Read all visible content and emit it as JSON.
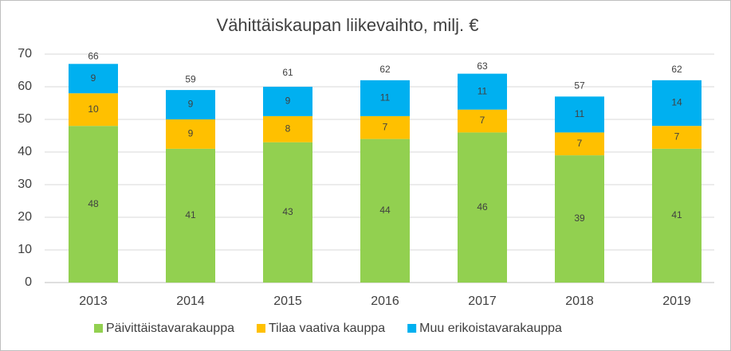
{
  "chart_data": {
    "type": "stacked_bar",
    "title": "Vähittäiskaupan liikevaihto, milj. €",
    "categories": [
      "2013",
      "2014",
      "2015",
      "2016",
      "2017",
      "2018",
      "2019"
    ],
    "series": [
      {
        "name": "Päivittäistavarakauppa",
        "color": "#92d050",
        "values": [
          48,
          41,
          43,
          44,
          46,
          39,
          41
        ]
      },
      {
        "name": "Tilaa vaativa kauppa",
        "color": "#ffc000",
        "values": [
          10,
          9,
          8,
          7,
          7,
          7,
          7
        ]
      },
      {
        "name": "Muu erikoistavarakauppa",
        "color": "#00b0f0",
        "values": [
          9,
          9,
          9,
          11,
          11,
          11,
          14
        ]
      }
    ],
    "totals": [
      66,
      59,
      61,
      62,
      63,
      57,
      62
    ],
    "ylim": [
      0,
      70
    ],
    "yticks": [
      0,
      10,
      20,
      30,
      40,
      50,
      60,
      70
    ],
    "grid": true,
    "legend": "bottom"
  }
}
